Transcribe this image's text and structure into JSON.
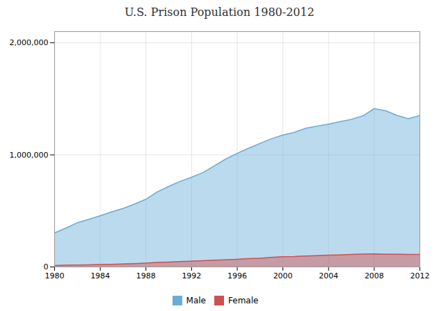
{
  "chart_data": {
    "type": "area",
    "title": "U.S. Prison Population 1980-2012",
    "x": [
      1980,
      1981,
      1982,
      1983,
      1984,
      1985,
      1986,
      1987,
      1988,
      1989,
      1990,
      1991,
      1992,
      1993,
      1994,
      1995,
      1996,
      1997,
      1998,
      1999,
      2000,
      2001,
      2002,
      2003,
      2004,
      2005,
      2006,
      2007,
      2008,
      2009,
      2010,
      2011,
      2012
    ],
    "series": [
      {
        "name": "Male",
        "color": "#6aaed6",
        "values": [
          303643,
          346837,
          394374,
          423898,
          456344,
          490472,
          522084,
          560812,
          603732,
          669479,
          718624,
          762812,
          800776,
          841586,
          902549,
          963291,
          1013736,
          1059072,
          1102022,
          1143643,
          1176929,
          1200564,
          1237523,
          1256599,
          1274900,
          1296100,
          1316600,
          1347200,
          1412400,
          1393800,
          1352400,
          1322300,
          1350952
        ]
      },
      {
        "name": "Female",
        "color": "#d05050",
        "values": [
          12576,
          14798,
          17138,
          19108,
          21296,
          23779,
          26610,
          29926,
          33534,
          39825,
          44065,
          47691,
          51291,
          55365,
          60060,
          63512,
          68468,
          73846,
          78100,
          85031,
          91612,
          93234,
          97491,
          100102,
          104848,
          107518,
          111403,
          114420,
          115779,
          113462,
          112797,
          111387,
          111000
        ]
      }
    ],
    "xlim": [
      1980,
      2012
    ],
    "xticks": [
      1980,
      1984,
      1988,
      1992,
      1996,
      2000,
      2004,
      2008,
      2012
    ],
    "ylim": [
      0,
      2100000
    ],
    "yticks": [
      0,
      {
        "value": 1000000,
        "label": "1,000,000"
      },
      {
        "value": 2000000,
        "label": "2,000,000"
      }
    ],
    "grid": true,
    "legend": "bottom"
  }
}
